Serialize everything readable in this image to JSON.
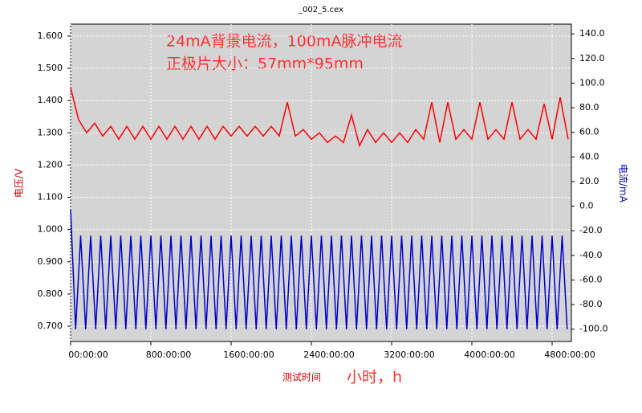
{
  "chart_data": {
    "type": "line",
    "title": "_002_5.cex",
    "annotations": [
      "24mA背景电流，100mA脉冲电流",
      "正极片大小：57mm*95mm",
      "小时，h"
    ],
    "xlabel": "测试时间",
    "ylabel": "电压/V",
    "y2label": "电流/mA",
    "xlim": [
      0,
      4992
    ],
    "xticks": [
      {
        "value": 0,
        "label": "00:00:00"
      },
      {
        "value": 800,
        "label": "800:00:00"
      },
      {
        "value": 1600,
        "label": "1600:00:00"
      },
      {
        "value": 2400,
        "label": "2400:00:00"
      },
      {
        "value": 3200,
        "label": "3200:00:00"
      },
      {
        "value": 4000,
        "label": "4000:00:00"
      },
      {
        "value": 4800,
        "label": "4800:00:00"
      }
    ],
    "ylim": [
      0.653,
      1.637
    ],
    "yticks": [
      {
        "value": 0.7,
        "label": "0.700"
      },
      {
        "value": 0.8,
        "label": "0.800"
      },
      {
        "value": 0.9,
        "label": "0.900"
      },
      {
        "value": 1.0,
        "label": "1.000"
      },
      {
        "value": 1.1,
        "label": "1.100"
      },
      {
        "value": 1.2,
        "label": "1.200"
      },
      {
        "value": 1.3,
        "label": "1.300"
      },
      {
        "value": 1.4,
        "label": "1.400"
      },
      {
        "value": 1.5,
        "label": "1.500"
      },
      {
        "value": 1.6,
        "label": "1.600"
      }
    ],
    "y2lim": [
      -110,
      148
    ],
    "y2ticks": [
      {
        "value": -100,
        "label": "-100.0"
      },
      {
        "value": -80,
        "label": "-80.0"
      },
      {
        "value": -60,
        "label": "-60.0"
      },
      {
        "value": -40,
        "label": "-40.0"
      },
      {
        "value": -20,
        "label": "-20.0"
      },
      {
        "value": 0,
        "label": "0.0"
      },
      {
        "value": 20,
        "label": "20.0"
      },
      {
        "value": 40,
        "label": "40.0"
      },
      {
        "value": 60,
        "label": "60.0"
      },
      {
        "value": 80,
        "label": "80.0"
      },
      {
        "value": 100,
        "label": "100.0"
      },
      {
        "value": 120,
        "label": "120.0"
      },
      {
        "value": 140,
        "label": "140.0"
      }
    ],
    "grid": true,
    "series": [
      {
        "color": "#ff0000",
        "x": [
          0,
          80,
          160,
          240,
          320,
          400,
          480,
          560,
          640,
          720,
          800,
          880,
          960,
          1040,
          1120,
          1200,
          1280,
          1360,
          1440,
          1520,
          1600,
          1680,
          1760,
          1840,
          1920,
          2000,
          2080,
          2160,
          2240,
          2320,
          2400,
          2480,
          2560,
          2640,
          2720,
          2800,
          2880,
          2960,
          3040,
          3120,
          3200,
          3280,
          3360,
          3440,
          3520,
          3600,
          3680,
          3760,
          3840,
          3920,
          4000,
          4080,
          4160,
          4240,
          4320,
          4400,
          4480,
          4560,
          4640,
          4720,
          4800,
          4880,
          4960
        ],
        "values": [
          1.44,
          1.34,
          1.3,
          1.33,
          1.29,
          1.32,
          1.28,
          1.32,
          1.28,
          1.32,
          1.28,
          1.32,
          1.28,
          1.32,
          1.28,
          1.32,
          1.28,
          1.32,
          1.28,
          1.32,
          1.29,
          1.32,
          1.29,
          1.32,
          1.29,
          1.32,
          1.29,
          1.395,
          1.29,
          1.31,
          1.28,
          1.3,
          1.27,
          1.29,
          1.27,
          1.355,
          1.26,
          1.31,
          1.27,
          1.3,
          1.27,
          1.3,
          1.27,
          1.31,
          1.28,
          1.395,
          1.27,
          1.395,
          1.28,
          1.31,
          1.28,
          1.395,
          1.28,
          1.31,
          1.28,
          1.395,
          1.28,
          1.31,
          1.28,
          1.39,
          1.28,
          1.41,
          1.28
        ]
      },
      {
        "color": "#0000cc",
        "axis": "y2",
        "x": [
          0,
          50,
          100,
          150,
          200,
          250,
          300,
          350,
          400,
          450,
          500,
          550,
          600,
          650,
          700,
          750,
          800,
          850,
          900,
          950,
          1000,
          1050,
          1100,
          1150,
          1200,
          1250,
          1300,
          1350,
          1400,
          1450,
          1500,
          1550,
          1600,
          1650,
          1700,
          1750,
          1800,
          1850,
          1900,
          1950,
          2000,
          2050,
          2100,
          2150,
          2200,
          2250,
          2300,
          2350,
          2400,
          2450,
          2500,
          2550,
          2600,
          2650,
          2700,
          2750,
          2800,
          2850,
          2900,
          2950,
          3000,
          3050,
          3100,
          3150,
          3200,
          3250,
          3300,
          3350,
          3400,
          3450,
          3500,
          3550,
          3600,
          3650,
          3700,
          3750,
          3800,
          3850,
          3900,
          3950,
          4000,
          4050,
          4100,
          4150,
          4200,
          4250,
          4300,
          4350,
          4400,
          4450,
          4500,
          4550,
          4600,
          4650,
          4700,
          4750,
          4800,
          4850,
          4900,
          4950
        ],
        "values": [
          -3,
          -100,
          -24,
          -100,
          -24,
          -100,
          -24,
          -100,
          -24,
          -100,
          -24,
          -100,
          -24,
          -100,
          -24,
          -100,
          -24,
          -100,
          -24,
          -100,
          -24,
          -100,
          -24,
          -100,
          -24,
          -100,
          -24,
          -100,
          -24,
          -100,
          -24,
          -100,
          -24,
          -100,
          -24,
          -100,
          -24,
          -100,
          -24,
          -100,
          -24,
          -100,
          -24,
          -100,
          -24,
          -100,
          -24,
          -100,
          -24,
          -100,
          -24,
          -100,
          -24,
          -100,
          -24,
          -100,
          -24,
          -100,
          -24,
          -100,
          -24,
          -100,
          -24,
          -100,
          -24,
          -100,
          -24,
          -100,
          -24,
          -100,
          -24,
          -100,
          -24,
          -100,
          -24,
          -100,
          -24,
          -100,
          -24,
          -100,
          -24,
          -100,
          -24,
          -100,
          -24,
          -100,
          -24,
          -100,
          -24,
          -100,
          -24,
          -100,
          -24,
          -100,
          -24,
          -100,
          -24,
          -100,
          -24,
          -100
        ]
      }
    ]
  }
}
